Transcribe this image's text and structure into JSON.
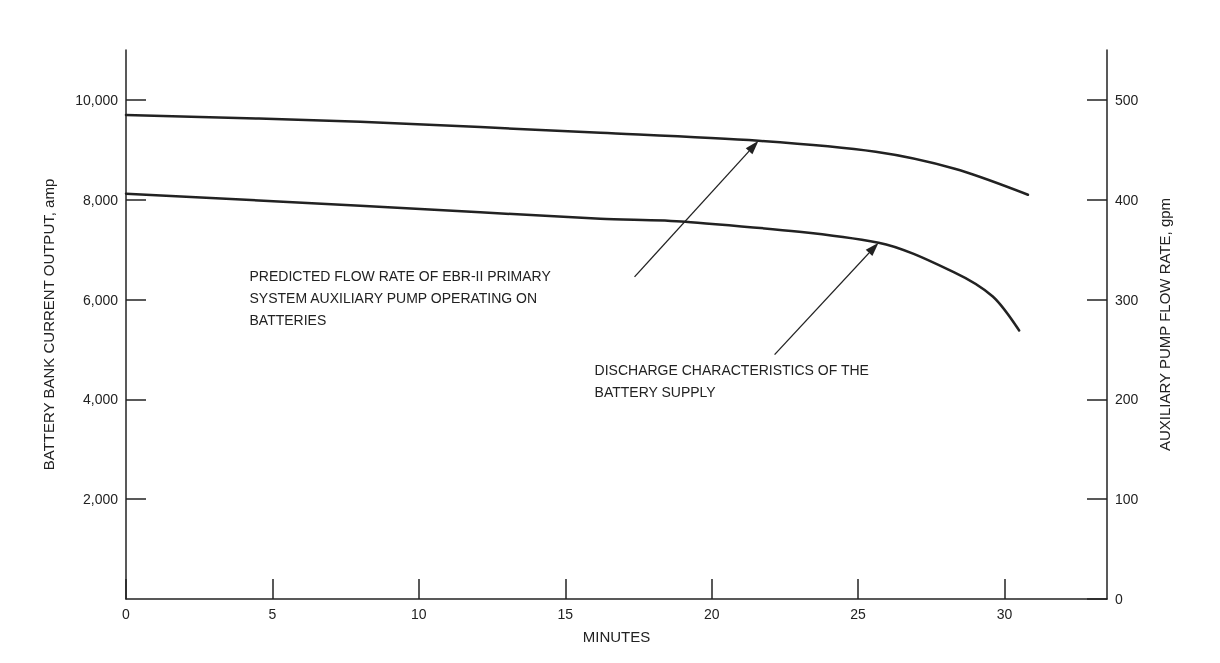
{
  "chart_data": {
    "type": "line",
    "xlabel": "MINUTES",
    "ylabel": "BATTERY BANK CURRENT OUTPUT, amp",
    "y2label": "AUXILIARY PUMP FLOW RATE, gpm",
    "xlim": [
      0,
      33.5
    ],
    "xticks": [
      0,
      5,
      10,
      15,
      20,
      25,
      30
    ],
    "ylim": [
      0,
      11000
    ],
    "yticks": [
      {
        "value": 2000,
        "label": "2,000"
      },
      {
        "value": 4000,
        "label": "4,000"
      },
      {
        "value": 6000,
        "label": "6,000"
      },
      {
        "value": 8000,
        "label": "8,000"
      },
      {
        "value": 10000,
        "label": "10,000"
      }
    ],
    "y2lim": [
      0,
      550
    ],
    "y2ticks": [
      0,
      100,
      200,
      300,
      400,
      500
    ],
    "series": [
      {
        "axis": "y2",
        "color": "#222222",
        "x": [
          0,
          8,
          16.2,
          21.6,
          25.6,
          28.3,
          30.8
        ],
        "values": [
          485,
          478,
          467,
          459,
          448,
          431,
          405
        ]
      },
      {
        "axis": "y",
        "color": "#222222",
        "x": [
          0,
          8,
          16.2,
          19.1,
          25.7,
          28.3,
          29.6,
          30.5
        ],
        "values": [
          8120,
          7880,
          7620,
          7560,
          7140,
          6540,
          6060,
          5380
        ]
      }
    ],
    "annotations": [
      "PREDICTED FLOW RATE OF EBR-II PRIMARY SYSTEM AUXILIARY PUMP OPERATING ON BATTERIES",
      "DISCHARGE CHARACTERISTICS OF THE BATTERY SUPPLY"
    ],
    "grid": false,
    "line_style": "solid",
    "marker": "none"
  }
}
